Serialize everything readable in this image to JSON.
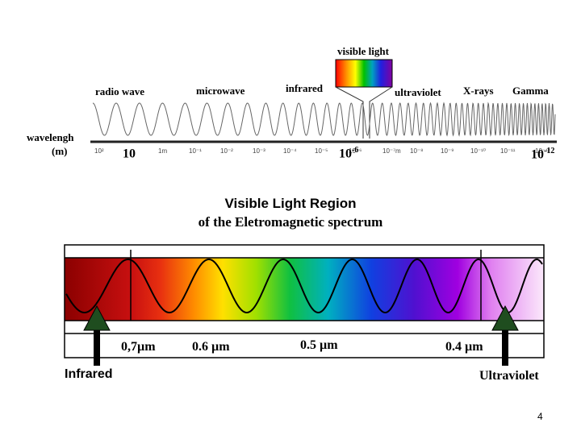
{
  "top_spectrum": {
    "visible_light_label": "visible light",
    "bands": [
      "radio wave",
      "microwave",
      "infrared",
      "ultraviolet",
      "X-rays",
      "Gamma"
    ],
    "wavelength_label_line1": "wavelengh",
    "wavelength_label_line2": "(m)",
    "ticks": [
      "10²",
      "1m",
      "10⁻¹",
      "10⁻²",
      "10⁻³",
      "10⁻⁴",
      "10⁻⁵",
      "10⁻⁶",
      "10⁻⁷m",
      "10⁻⁸",
      "10⁻⁹",
      "10⁻¹⁰",
      "10⁻¹¹",
      "10⁻¹²"
    ],
    "big_labels": [
      {
        "base": "10",
        "exp": ""
      },
      {
        "base": "10",
        "exp": "-6"
      },
      {
        "base": "10",
        "exp": "-12"
      }
    ]
  },
  "visible_region": {
    "title_line1": "Visible Light Region",
    "title_line2": "of the Eletromagnetic spectrum",
    "markers": [
      "0,7µm",
      "0.6 µm",
      "0.5 µm",
      "0.4 µm"
    ],
    "left_label": "Infrared",
    "right_label": "Ultraviolet"
  },
  "page_number": "4"
}
